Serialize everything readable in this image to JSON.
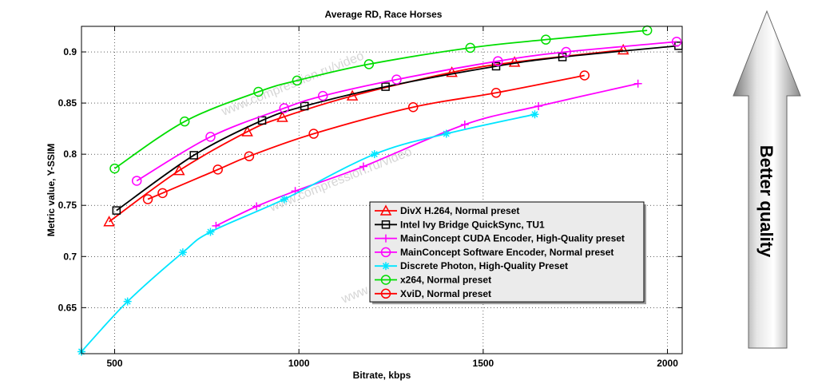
{
  "chart_data": {
    "type": "line",
    "title": "Average RD, Race Horses",
    "xlabel": "Bitrate, kbps",
    "ylabel": "Metric value, Y-SSIM",
    "xlim": [
      410,
      2040
    ],
    "ylim": [
      0.605,
      0.925
    ],
    "xticks": [
      500,
      1000,
      1500,
      2000
    ],
    "yticks": [
      0.65,
      0.7,
      0.75,
      0.8,
      0.85,
      0.9
    ],
    "ytick_labels": [
      "0.65",
      "0.7",
      "0.75",
      "0.8",
      "0.85",
      "0.9"
    ],
    "grid": true,
    "legend_position": "lower-right",
    "watermark": "www.compression.ru/video",
    "side_label": "Better quality",
    "series": [
      {
        "name": "DivX H.264, Normal preset",
        "color": "#ff0000",
        "marker": "triangle",
        "x": [
          485,
          675,
          860,
          955,
          1145,
          1415,
          1585,
          1880
        ],
        "y": [
          0.734,
          0.784,
          0.822,
          0.836,
          0.857,
          0.88,
          0.89,
          0.902
        ]
      },
      {
        "name": "Intel Ivy Bridge QuickSync, TU1",
        "color": "#000000",
        "marker": "square",
        "x": [
          505,
          715,
          900,
          1015,
          1235,
          1535,
          1715,
          2030
        ],
        "y": [
          0.745,
          0.799,
          0.833,
          0.847,
          0.866,
          0.886,
          0.895,
          0.906
        ]
      },
      {
        "name": "MainConcept CUDA Encoder, High-Quality preset",
        "color": "#ff00ff",
        "marker": "plus",
        "x": [
          775,
          885,
          990,
          1175,
          1450,
          1650,
          1920
        ],
        "y": [
          0.73,
          0.749,
          0.764,
          0.788,
          0.829,
          0.847,
          0.869
        ]
      },
      {
        "name": "MainConcept Software Encoder, Normal preset",
        "color": "#ff00ff",
        "marker": "circle",
        "x": [
          560,
          760,
          960,
          1065,
          1265,
          1540,
          1725,
          2025
        ],
        "y": [
          0.774,
          0.817,
          0.845,
          0.857,
          0.873,
          0.891,
          0.9,
          0.91
        ]
      },
      {
        "name": "Discrete Photon, High-Quality Preset",
        "color": "#00e5ff",
        "marker": "star",
        "x": [
          410,
          535,
          685,
          760,
          960,
          1205,
          1400,
          1640
        ],
        "y": [
          0.607,
          0.656,
          0.704,
          0.724,
          0.756,
          0.8,
          0.82,
          0.839
        ]
      },
      {
        "name": "x264, Normal preset",
        "color": "#00dd00",
        "marker": "circle",
        "x": [
          500,
          690,
          890,
          995,
          1190,
          1465,
          1670,
          1945
        ],
        "y": [
          0.786,
          0.832,
          0.861,
          0.872,
          0.888,
          0.904,
          0.912,
          0.921
        ]
      },
      {
        "name": "XviD, Normal preset",
        "color": "#ff0000",
        "marker": "circle",
        "x": [
          590,
          630,
          780,
          865,
          1040,
          1310,
          1535,
          1775
        ],
        "y": [
          0.756,
          0.762,
          0.785,
          0.798,
          0.82,
          0.846,
          0.86,
          0.877
        ]
      }
    ]
  }
}
